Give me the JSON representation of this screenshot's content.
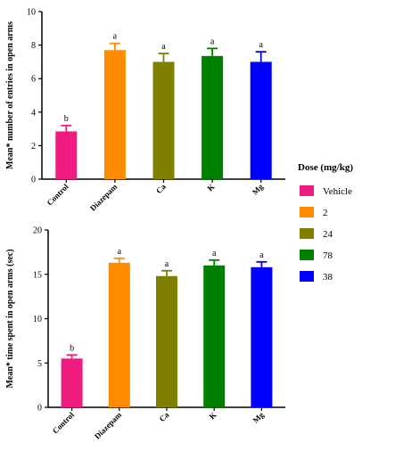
{
  "chart_data": [
    {
      "type": "bar",
      "ylabel": "Mean* number of entries in open arms",
      "categories": [
        "Control",
        "Diazepam",
        "Ca",
        "K",
        "Mg"
      ],
      "values": [
        2.85,
        7.7,
        7.0,
        7.35,
        7.0
      ],
      "errors": [
        0.35,
        0.4,
        0.5,
        0.45,
        0.6
      ],
      "significance": [
        "b",
        "a",
        "a",
        "a",
        "a"
      ],
      "ylim": [
        0,
        10
      ],
      "yticks": [
        0,
        2,
        4,
        6,
        8,
        10
      ]
    },
    {
      "type": "bar",
      "ylabel": "Mean* time spent in open arms (sec)",
      "categories": [
        "Control",
        "Diazepam",
        "Ca",
        "K",
        "Mg"
      ],
      "values": [
        5.5,
        16.3,
        14.8,
        16.0,
        15.8
      ],
      "errors": [
        0.4,
        0.5,
        0.6,
        0.6,
        0.6
      ],
      "significance": [
        "b",
        "a",
        "a",
        "a",
        "a"
      ],
      "ylim": [
        0,
        20
      ],
      "yticks": [
        0,
        5,
        10,
        15,
        20
      ]
    }
  ],
  "legend": {
    "title": "Dose (mg/kg)",
    "items": [
      {
        "label": "Vehicle",
        "color": "#f01d80"
      },
      {
        "label": "2",
        "color": "#ff8c00"
      },
      {
        "label": "24",
        "color": "#808000"
      },
      {
        "label": "78",
        "color": "#008000"
      },
      {
        "label": "38",
        "color": "#0000ff"
      }
    ]
  }
}
